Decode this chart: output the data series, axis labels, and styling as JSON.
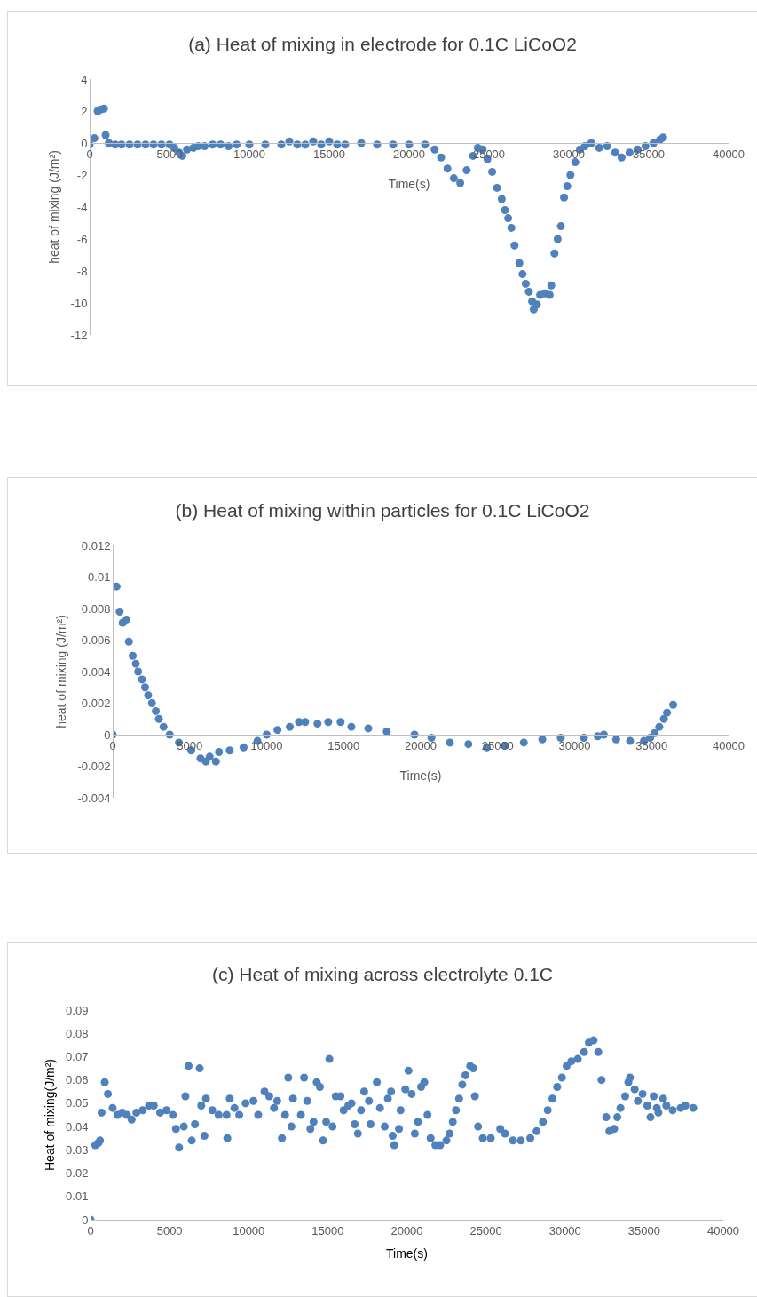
{
  "chart_data": [
    {
      "type": "scatter",
      "title": "(a) Heat of mixing in electrode for 0.1C LiCoO2",
      "xlabel": "Time(s)",
      "ylabel": "heat of mixing (J/m²)",
      "marker": "circle",
      "grid": false,
      "xlim": [
        0,
        40000
      ],
      "xticks": [
        0,
        5000,
        10000,
        15000,
        20000,
        25000,
        30000,
        35000,
        40000
      ],
      "ylim": [
        -12,
        4
      ],
      "yticks": [
        -12,
        -10,
        -8,
        -6,
        -4,
        -2,
        0,
        2,
        4
      ],
      "series": [
        {
          "color": "#4f81bd",
          "x": [
            0,
            300,
            500,
            700,
            900,
            1000,
            1200,
            1600,
            2000,
            2500,
            3000,
            3500,
            4000,
            4500,
            5000,
            5300,
            5600,
            5800,
            6100,
            6500,
            6800,
            7200,
            7700,
            8200,
            8700,
            9200,
            10000,
            11000,
            12000,
            12500,
            13000,
            13500,
            14000,
            14500,
            15000,
            15500,
            16000,
            17000,
            18000,
            19000,
            20000,
            21000,
            21600,
            22000,
            22400,
            22800,
            23200,
            23600,
            24000,
            24300,
            24600,
            24900,
            25200,
            25500,
            25800,
            26000,
            26200,
            26400,
            26600,
            26900,
            27100,
            27300,
            27500,
            27700,
            27800,
            28000,
            28200,
            28500,
            28800,
            28900,
            29100,
            29300,
            29500,
            29700,
            29900,
            30100,
            30400,
            30700,
            31000,
            31400,
            31900,
            32400,
            32900,
            33300,
            33800,
            34300,
            34800,
            35300,
            35700,
            35900
          ],
          "values": [
            -0.1,
            0.3,
            2.0,
            2.1,
            2.15,
            0.5,
            0.0,
            -0.1,
            -0.1,
            -0.1,
            -0.1,
            -0.1,
            -0.1,
            -0.1,
            -0.1,
            -0.3,
            -0.6,
            -0.8,
            -0.4,
            -0.3,
            -0.2,
            -0.2,
            -0.1,
            -0.1,
            -0.2,
            -0.1,
            -0.1,
            -0.1,
            -0.1,
            0.1,
            -0.1,
            -0.1,
            0.1,
            -0.1,
            0.1,
            -0.1,
            -0.1,
            0.0,
            -0.1,
            -0.1,
            -0.1,
            -0.1,
            -0.4,
            -0.9,
            -1.6,
            -2.2,
            -2.5,
            -1.7,
            -0.8,
            -0.3,
            -0.4,
            -1.0,
            -1.8,
            -2.8,
            -3.5,
            -4.2,
            -4.7,
            -5.3,
            -6.4,
            -7.5,
            -8.2,
            -8.8,
            -9.3,
            -9.9,
            -10.4,
            -10.1,
            -9.5,
            -9.4,
            -9.5,
            -8.9,
            -6.9,
            -6.0,
            -5.2,
            -3.4,
            -2.7,
            -2.0,
            -1.2,
            -0.4,
            -0.2,
            0.0,
            -0.3,
            -0.2,
            -0.6,
            -0.9,
            -0.6,
            -0.4,
            -0.2,
            0.0,
            0.2,
            0.35
          ]
        }
      ]
    },
    {
      "type": "scatter",
      "title": "(b) Heat of mixing within particles for 0.1C LiCoO2",
      "xlabel": "Time(s)",
      "ylabel": "heat of mixing (J/m²)",
      "marker": "circle",
      "grid": false,
      "xlim": [
        0,
        40000
      ],
      "xticks": [
        0,
        5000,
        10000,
        15000,
        20000,
        25000,
        30000,
        35000,
        40000
      ],
      "ylim": [
        -0.004,
        0.012
      ],
      "yticks": [
        -0.004,
        -0.002,
        0,
        0.002,
        0.004,
        0.006,
        0.008,
        0.01,
        0.012
      ],
      "series": [
        {
          "color": "#4f81bd",
          "x": [
            0,
            250,
            450,
            650,
            900,
            1050,
            1300,
            1500,
            1650,
            1900,
            2100,
            2300,
            2550,
            2800,
            3000,
            3300,
            3700,
            4300,
            5100,
            5700,
            6050,
            6300,
            6700,
            6900,
            7600,
            8500,
            9400,
            10000,
            10700,
            11500,
            12100,
            12500,
            13300,
            14000,
            14800,
            15500,
            16600,
            17800,
            19600,
            20700,
            21900,
            23100,
            24300,
            25500,
            26700,
            27900,
            29100,
            30600,
            31500,
            31900,
            32700,
            33600,
            34500,
            34900,
            35200,
            35500,
            35800,
            36000,
            36400
          ],
          "values": [
            0,
            0.0094,
            0.0078,
            0.0071,
            0.0073,
            0.0059,
            0.005,
            0.0045,
            0.004,
            0.0035,
            0.003,
            0.0025,
            0.002,
            0.0015,
            0.001,
            0.0005,
            0,
            -0.0005,
            -0.001,
            -0.0015,
            -0.0017,
            -0.0014,
            -0.0017,
            -0.0011,
            -0.001,
            -0.0008,
            -0.0004,
            0,
            0.0003,
            0.0005,
            0.0008,
            0.0008,
            0.0007,
            0.0008,
            0.0008,
            0.0005,
            0.0004,
            0.0002,
            0,
            -0.0002,
            -0.0005,
            -0.0006,
            -0.0008,
            -0.0007,
            -0.0005,
            -0.0003,
            -0.0002,
            -0.0002,
            -0.0001,
            0,
            -0.0003,
            -0.0004,
            -0.0004,
            -0.0002,
            0.0001,
            0.0005,
            0.001,
            0.0014,
            0.0019
          ]
        }
      ]
    },
    {
      "type": "scatter",
      "title": "(c) Heat of mixing across electrolyte 0.1C",
      "xlabel": "Time(s)",
      "ylabel": "Heat of mixing(J/m²)",
      "marker": "circle",
      "grid": false,
      "xlim": [
        0,
        40000
      ],
      "xticks": [
        0,
        5000,
        10000,
        15000,
        20000,
        25000,
        30000,
        35000,
        40000
      ],
      "ylim": [
        0,
        0.09
      ],
      "yticks": [
        0,
        0.01,
        0.02,
        0.03,
        0.04,
        0.05,
        0.06,
        0.07,
        0.08,
        0.09
      ],
      "series": [
        {
          "color": "#4f81bd",
          "x": [
            0,
            300,
            500,
            600,
            700,
            900,
            1100,
            1400,
            1700,
            2000,
            2300,
            2600,
            2900,
            3300,
            3700,
            4000,
            4400,
            4800,
            5200,
            5400,
            5600,
            5900,
            6000,
            6200,
            6400,
            6600,
            6900,
            7000,
            7200,
            7300,
            7700,
            8100,
            8600,
            8650,
            8800,
            9100,
            9400,
            9800,
            10300,
            10600,
            11000,
            11300,
            11600,
            11800,
            12100,
            12300,
            12500,
            12700,
            12800,
            13300,
            13500,
            13700,
            13900,
            14100,
            14300,
            14500,
            14700,
            14900,
            15100,
            15300,
            15500,
            15800,
            16000,
            16300,
            16500,
            16700,
            16900,
            17100,
            17300,
            17600,
            17700,
            18100,
            18300,
            18600,
            18800,
            19000,
            19100,
            19200,
            19500,
            19600,
            19900,
            20100,
            20300,
            20500,
            20700,
            20900,
            21100,
            21300,
            21500,
            21800,
            22100,
            22500,
            22700,
            22900,
            23100,
            23300,
            23500,
            23700,
            24000,
            24200,
            24300,
            24500,
            24800,
            25300,
            25900,
            26200,
            26700,
            27200,
            27800,
            28200,
            28600,
            28900,
            29200,
            29500,
            29800,
            30100,
            30400,
            30800,
            31200,
            31500,
            31800,
            32100,
            32300,
            32600,
            32800,
            33100,
            33300,
            33500,
            33800,
            34000,
            34100,
            34400,
            34600,
            34900,
            35200,
            35400,
            35600,
            35800,
            35900,
            36200,
            36400,
            36800,
            37300,
            37600,
            38100
          ],
          "values": [
            0,
            0.032,
            0.033,
            0.034,
            0.046,
            0.059,
            0.054,
            0.048,
            0.045,
            0.046,
            0.045,
            0.043,
            0.046,
            0.047,
            0.049,
            0.049,
            0.046,
            0.047,
            0.045,
            0.039,
            0.031,
            0.04,
            0.053,
            0.066,
            0.034,
            0.041,
            0.065,
            0.049,
            0.036,
            0.052,
            0.047,
            0.045,
            0.045,
            0.035,
            0.052,
            0.048,
            0.045,
            0.05,
            0.051,
            0.045,
            0.055,
            0.053,
            0.048,
            0.051,
            0.035,
            0.045,
            0.061,
            0.04,
            0.052,
            0.045,
            0.061,
            0.051,
            0.039,
            0.042,
            0.059,
            0.057,
            0.034,
            0.042,
            0.069,
            0.04,
            0.053,
            0.053,
            0.047,
            0.049,
            0.05,
            0.041,
            0.037,
            0.047,
            0.055,
            0.051,
            0.041,
            0.059,
            0.048,
            0.04,
            0.052,
            0.055,
            0.036,
            0.032,
            0.039,
            0.047,
            0.056,
            0.064,
            0.054,
            0.037,
            0.042,
            0.057,
            0.059,
            0.045,
            0.035,
            0.032,
            0.032,
            0.034,
            0.037,
            0.042,
            0.047,
            0.052,
            0.058,
            0.062,
            0.066,
            0.065,
            0.053,
            0.04,
            0.035,
            0.035,
            0.039,
            0.037,
            0.034,
            0.034,
            0.035,
            0.038,
            0.042,
            0.047,
            0.052,
            0.057,
            0.061,
            0.066,
            0.068,
            0.069,
            0.072,
            0.076,
            0.077,
            0.072,
            0.06,
            0.044,
            0.038,
            0.039,
            0.044,
            0.048,
            0.053,
            0.059,
            0.061,
            0.056,
            0.051,
            0.054,
            0.049,
            0.044,
            0.053,
            0.048,
            0.046,
            0.052,
            0.049,
            0.047,
            0.048,
            0.049,
            0.048
          ]
        }
      ]
    }
  ]
}
